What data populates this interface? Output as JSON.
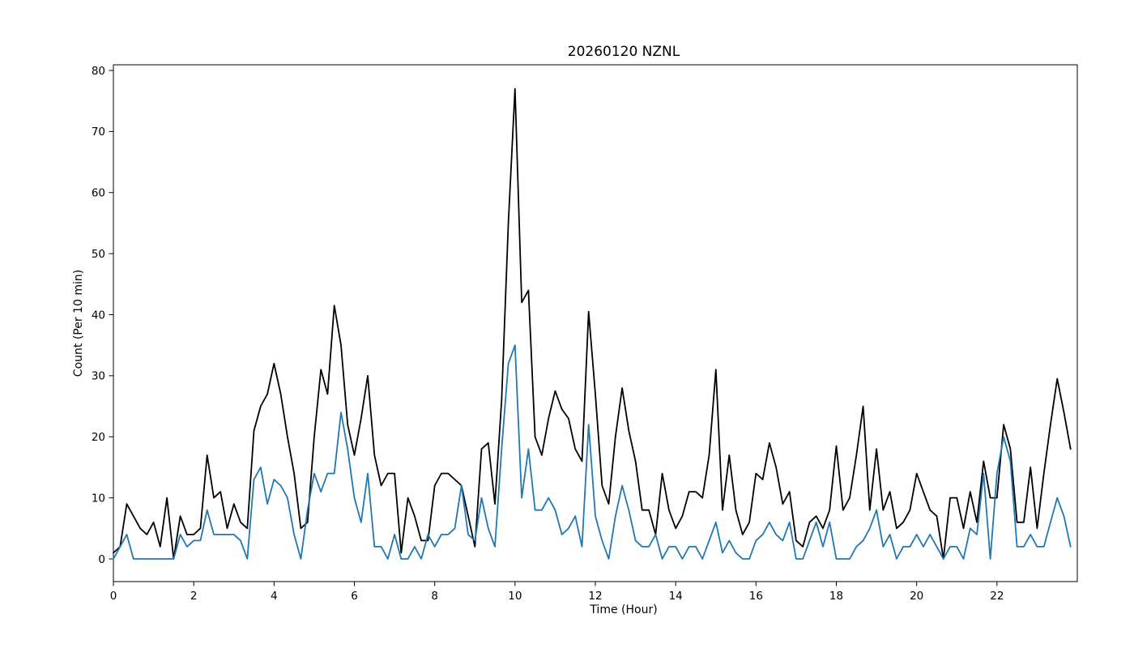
{
  "title": "20260120 NZNL",
  "chart_data": {
    "type": "line",
    "title": "20260120 NZNL",
    "xlabel": "Time (Hour)",
    "ylabel": "Count (Per 10 min)",
    "xlim": [
      0,
      24
    ],
    "ylim": [
      0,
      80
    ],
    "x_ticks": [
      0,
      2,
      4,
      6,
      8,
      10,
      12,
      14,
      16,
      18,
      20,
      22
    ],
    "y_ticks": [
      0,
      10,
      20,
      30,
      40,
      50,
      60,
      70,
      80
    ],
    "x_start_hour": 0,
    "x_step_hours": 0.166667,
    "grid": false,
    "legend": "none",
    "series": [
      {
        "name": "series-black",
        "color": "#000000",
        "values": [
          1,
          2,
          9,
          7,
          5,
          4,
          6,
          2,
          10,
          0,
          7,
          4,
          4,
          5,
          17,
          10,
          11,
          5,
          9,
          6,
          5,
          21,
          25,
          27,
          32,
          27,
          20,
          14,
          5,
          6,
          20,
          31,
          27,
          41.5,
          35,
          22,
          17,
          23,
          30,
          17,
          12,
          14,
          14,
          1,
          10,
          7,
          3,
          3,
          12,
          14,
          14,
          13,
          12,
          7,
          2,
          18,
          19,
          9,
          26,
          55,
          77,
          42,
          44,
          20,
          17,
          23,
          27.5,
          24.5,
          23,
          18,
          16,
          40.5,
          27,
          12,
          9,
          20,
          28,
          21,
          16,
          8,
          8,
          4,
          14,
          8,
          5,
          7,
          11,
          11,
          10,
          17,
          31,
          8,
          17,
          8,
          4,
          6,
          14,
          13,
          19,
          15,
          9,
          11,
          3,
          2,
          6,
          7,
          5,
          8,
          18.5,
          8,
          10,
          17,
          25,
          8,
          18,
          8,
          11,
          5,
          6,
          8,
          14,
          11,
          8,
          7,
          0,
          10,
          10,
          5,
          11,
          6,
          16,
          10,
          10,
          22,
          18,
          6,
          6,
          15,
          5,
          14,
          22,
          29.5,
          24,
          18
        ]
      },
      {
        "name": "series-blue",
        "color": "#1f77b4",
        "values": [
          0,
          2,
          4,
          0,
          0,
          0,
          0,
          0,
          0,
          0,
          4,
          2,
          3,
          3,
          8,
          4,
          4,
          4,
          4,
          3,
          0,
          13,
          15,
          9,
          13,
          12,
          10,
          4,
          0,
          8,
          14,
          11,
          14,
          14,
          24,
          18,
          10,
          6,
          14,
          2,
          2,
          0,
          4,
          0,
          0,
          2,
          0,
          4,
          2,
          4,
          4,
          5,
          12,
          4,
          3,
          10,
          5,
          2,
          18,
          32,
          35,
          10,
          18,
          8,
          8,
          10,
          8,
          4,
          5,
          7,
          2,
          22,
          7,
          3,
          0,
          7,
          12,
          8,
          3,
          2,
          2,
          4,
          0,
          2,
          2,
          0,
          2,
          2,
          0,
          3,
          6,
          1,
          3,
          1,
          0,
          0,
          3,
          4,
          6,
          4,
          3,
          6,
          0,
          0,
          3,
          6,
          2,
          6,
          0,
          0,
          0,
          2,
          3,
          5,
          8,
          2,
          4,
          0,
          2,
          2,
          4,
          2,
          4,
          2,
          0,
          2,
          2,
          0,
          5,
          4,
          14,
          0,
          14,
          20,
          16,
          2,
          2,
          4,
          2,
          2,
          6,
          10,
          7,
          2
        ]
      }
    ]
  }
}
